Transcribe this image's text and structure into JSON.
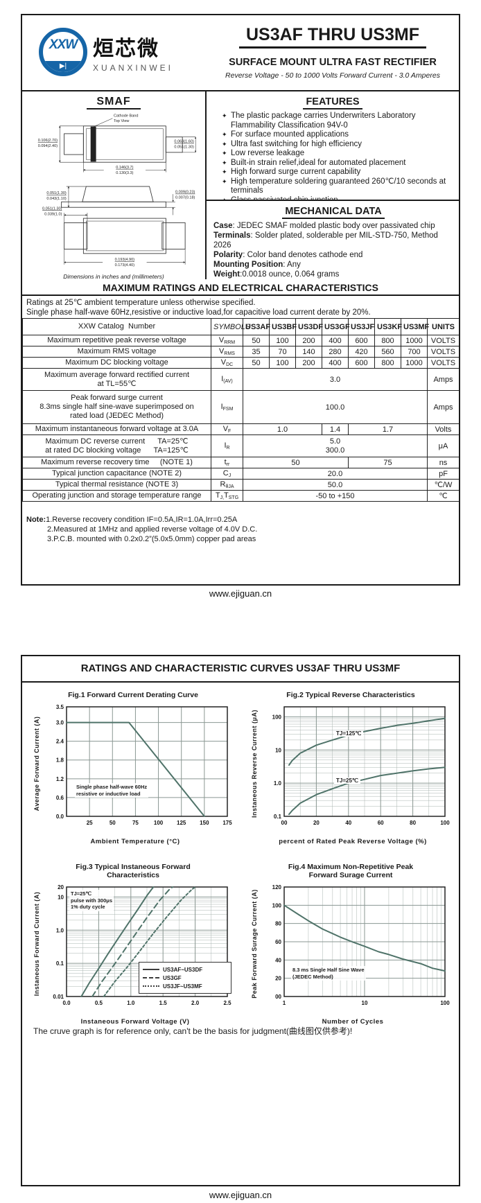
{
  "page1": {
    "logo": {
      "badge": "XXW",
      "diode": "▶|",
      "cn": "烜芯微",
      "en": "XUANXINWEI"
    },
    "title": "US3AF THRU US3MF",
    "subtitle": "SURFACE MOUNT ULTRA FAST RECTIFIER",
    "tagline": "Reverse Voltage - 50 to 1000 Volts  Forward Current -  3.0 Amperes",
    "package": {
      "name": "SMAF",
      "cathode_label": "Cathode Band",
      "view_label": "Top View",
      "dims": {
        "d1t": "0.106(2.70)",
        "d1b": "0.094(2.40)",
        "d2t": "0.063(1.60)",
        "d2b": "0.051(1.30)",
        "d3t": "0.146(3.7)",
        "d3b": "0.130(3.3)",
        "d4t": "0.051(1.30)",
        "d4b": "0.043(1.10)",
        "d5t": "0.009(0.23)",
        "d5b": "0.007(0.18)",
        "d6t": "0.051(1.30)",
        "d6b": "0.039(1.0)",
        "d7t": "0.193(4.90)",
        "d7b": "0.173(4.40)"
      },
      "caption": "Dimensions in inches and (millimeters)"
    },
    "features": {
      "heading": "FEATURES",
      "bullet": "✦",
      "items": [
        "The plastic package carries Underwriters Laboratory Flammability Classification 94V-0",
        "For surface mounted applications",
        "Ultra fast switching for high efficiency",
        "Low reverse leakage",
        "Built-in strain relief,ideal for automated placement",
        "High forward surge current capability",
        "High temperature soldering guaranteed 260℃/10 seconds at terminals",
        "Glass passivated chip junction"
      ]
    },
    "mech": {
      "heading": "MECHANICAL DATA",
      "rows": [
        {
          "label": "Case",
          "text": ": JEDEC SMAF molded plastic body over passivated chip"
        },
        {
          "label": "Terminals",
          "text": ": Solder plated, solderable per MIL-STD-750, Method 2026"
        },
        {
          "label": "Polarity",
          "text": ": Color band denotes cathode end"
        },
        {
          "label": "Mounting Position",
          "text": ": Any"
        },
        {
          "label": "Weight",
          "text": ":0.0018 ounce, 0.064 grams"
        }
      ]
    },
    "ratings": {
      "heading": "MAXIMUM RATINGS AND ELECTRICAL CHARACTERISTICS",
      "note1": "Ratings at 25℃ ambient temperature unless otherwise specified.",
      "note2": "Single phase half-wave 60Hz,resistive or inductive load,for capacitive load current derate by 20%."
    },
    "table": {
      "header": {
        "catalog": "XXW Catalog  Number",
        "symbols": "SYMBOLS",
        "parts": [
          "US3AF",
          "US3BF",
          "US3DF",
          "US3GF",
          "US3JF",
          "US3KF",
          "US3MF"
        ],
        "units": "UNITS"
      },
      "r1": {
        "param": "Maximum repetitive peak reverse voltage",
        "sym": "V",
        "sub": "RRM",
        "v0": "50",
        "v1": "100",
        "v2": "200",
        "v3": "400",
        "v4": "600",
        "v5": "800",
        "v6": "1000",
        "unit": "VOLTS"
      },
      "r2": {
        "param": "Maximum RMS voltage",
        "sym": "V",
        "sub": "RMS",
        "v0": "35",
        "v1": "70",
        "v2": "140",
        "v3": "280",
        "v4": "420",
        "v5": "560",
        "v6": "700",
        "unit": "VOLTS"
      },
      "r3": {
        "param": "Maximum DC blocking voltage",
        "sym": "V",
        "sub": "DC",
        "v0": "50",
        "v1": "100",
        "v2": "200",
        "v3": "400",
        "v4": "600",
        "v5": "800",
        "v6": "1000",
        "unit": "VOLTS"
      },
      "r4": {
        "param": "Maximum average forward rectified current\nat TL=55℃",
        "sym": "I",
        "sub": "(AV)",
        "v": "3.0",
        "unit": "Amps"
      },
      "r5": {
        "param": "Peak forward surge current\n8.3ms single half sine-wave superimposed on\nrated load (JEDEC Method)",
        "sym": "I",
        "sub": "FSM",
        "v": "100.0",
        "unit": "Amps"
      },
      "r6": {
        "param": "Maximum instantaneous forward voltage at 3.0A",
        "sym": "V",
        "sub": "F",
        "va": "1.0",
        "vb": "1.4",
        "vc": "1.7",
        "unit": "Volts"
      },
      "r7": {
        "param": "Maximum DC reverse current      TA=25℃\nat rated DC blocking voltage      TA=125℃",
        "sym": "I",
        "sub": "R",
        "v": "5.0\n300.0",
        "unit": "μA"
      },
      "r8": {
        "param": "Maximum reverse recovery time     (NOTE 1)",
        "sym": "t",
        "sub": "rr",
        "va": "50",
        "vb": "75",
        "unit": "ns"
      },
      "r9": {
        "param": "Typical junction capacitance (NOTE 2)",
        "sym": "C",
        "sub": "J",
        "v": "20.0",
        "unit": "pF"
      },
      "r10": {
        "param": "Typical thermal resistance (NOTE 3)",
        "sym": "R",
        "sub": "θJA",
        "v": "50.0",
        "unit": "℃/W"
      },
      "r11": {
        "param": "Operating junction and storage temperature range",
        "sym": "T",
        "sub": "J,",
        "sym2": "T",
        "sub2": "STG",
        "v": "-50 to +150",
        "unit": "℃"
      }
    },
    "notes": {
      "prefix": "Note:",
      "l1": "1.Reverse recovery condition IF=0.5A,IR=1.0A,Irr=0.25A",
      "l2": "2.Measured at 1MHz and applied reverse voltage of 4.0V D.C.",
      "l3": "3.P.C.B. mounted with 0.2x0.2”(5.0x5.0mm) copper pad areas"
    },
    "footer": "www.ejiguan.cn"
  },
  "page2": {
    "heading": "RATINGS AND CHARACTERISTIC CURVES US3AF THRU US3MF",
    "disclaimer": "The cruve graph is for reference only, can't be the basis for judgment(曲线图仅供参考)!",
    "footer": "www.ejiguan.cn"
  },
  "chart_data": [
    {
      "type": "line",
      "title": "Fig.1  Forward Current Derating Curve",
      "xlabel": "Ambient Temperature (°C)",
      "ylabel": "Average Forward Current  (A)",
      "x": {
        "min": 0,
        "max": 175,
        "log": false,
        "ticks": [
          25,
          50,
          75,
          100,
          125,
          150,
          175
        ],
        "labels": [
          "25",
          "50",
          "75",
          "100",
          "125",
          "150",
          "175"
        ]
      },
      "y": {
        "min": 0,
        "max": 3.5,
        "log": false,
        "ticks": [
          0,
          0.6,
          1.2,
          1.8,
          2.4,
          3,
          3.5
        ],
        "labels": [
          "0.0",
          "0.6",
          "1.2",
          "1.8",
          "2.4",
          "3.0",
          "3.5"
        ]
      },
      "annotation": "Single phase half-wave 60Hz\nresistive or inductive load",
      "series": [
        {
          "name": "derating",
          "dash": "solid",
          "points": [
            [
              0,
              3
            ],
            [
              68,
              3
            ],
            [
              150,
              0
            ]
          ]
        }
      ]
    },
    {
      "type": "line",
      "title": "Fig.2  Typical Reverse Characteristics",
      "xlabel": "percent of Rated  Peak Reverse Voltage (%)",
      "ylabel": "Instaneous Reverse Current (μA)",
      "x": {
        "min": 0,
        "max": 100,
        "log": false,
        "minor": 10,
        "ticks": [
          0,
          20,
          40,
          60,
          80,
          100
        ],
        "labels": [
          "00",
          "20",
          "40",
          "60",
          "80",
          "100"
        ]
      },
      "y": {
        "min": 0.1,
        "max": 200,
        "log": true,
        "ticks": [
          0.1,
          1,
          10,
          100
        ],
        "labels": [
          "0.1",
          "1.0",
          "10",
          "100"
        ]
      },
      "series": [
        {
          "name": "TJ=125℃",
          "dash": "solid",
          "points": [
            [
              3,
              3.5
            ],
            [
              5,
              4.8
            ],
            [
              10,
              8
            ],
            [
              20,
              14
            ],
            [
              30,
              20
            ],
            [
              40,
              28
            ],
            [
              50,
              36
            ],
            [
              60,
              45
            ],
            [
              70,
              55
            ],
            [
              80,
              64
            ],
            [
              90,
              76
            ],
            [
              100,
              90
            ]
          ]
        },
        {
          "name": "TJ=25℃",
          "dash": "solid",
          "points": [
            [
              3,
              0.115
            ],
            [
              5,
              0.15
            ],
            [
              10,
              0.25
            ],
            [
              20,
              0.45
            ],
            [
              30,
              0.68
            ],
            [
              40,
              1.0
            ],
            [
              50,
              1.3
            ],
            [
              60,
              1.7
            ],
            [
              70,
              2.0
            ],
            [
              80,
              2.35
            ],
            [
              90,
              2.7
            ],
            [
              100,
              3.0
            ]
          ]
        }
      ]
    },
    {
      "type": "line",
      "title": "Fig.3  Typical Instaneous Forward\nCharacteristics",
      "xlabel": "Instaneous Forward Voltage (V)",
      "ylabel": "Instaneous  Forward Current (A)",
      "x": {
        "min": 0,
        "max": 2.5,
        "log": false,
        "minor": 0.25,
        "ticks": [
          0,
          0.5,
          1,
          1.5,
          2,
          2.5
        ],
        "labels": [
          "0.0",
          "0.5",
          "1.0",
          "1.5",
          "2.0",
          "2.5"
        ]
      },
      "y": {
        "min": 0.01,
        "max": 20,
        "log": true,
        "ticks": [
          0.01,
          0.1,
          1,
          10,
          20
        ],
        "labels": [
          "0.01",
          "0.1",
          "1.0",
          "10",
          "20"
        ]
      },
      "annotation": "TJ=25℃\npulse with 300μs\n1% duty cycle",
      "series": [
        {
          "name": "US3AF~US3DF",
          "dash": "solid",
          "points": [
            [
              0.23,
              0.01
            ],
            [
              0.35,
              0.025
            ],
            [
              0.5,
              0.07
            ],
            [
              0.65,
              0.2
            ],
            [
              0.8,
              0.55
            ],
            [
              0.95,
              1.5
            ],
            [
              1.1,
              4
            ],
            [
              1.25,
              11
            ],
            [
              1.35,
              20
            ]
          ]
        },
        {
          "name": "US3GF",
          "dash": "long",
          "points": [
            [
              0.4,
              0.01
            ],
            [
              0.55,
              0.028
            ],
            [
              0.72,
              0.08
            ],
            [
              0.9,
              0.25
            ],
            [
              1.08,
              0.8
            ],
            [
              1.25,
              2.4
            ],
            [
              1.45,
              8
            ],
            [
              1.6,
              17
            ],
            [
              1.65,
              20
            ]
          ]
        },
        {
          "name": "US3JF~US3MF",
          "dash": "short",
          "points": [
            [
              0.58,
              0.01
            ],
            [
              0.75,
              0.028
            ],
            [
              0.95,
              0.08
            ],
            [
              1.15,
              0.25
            ],
            [
              1.35,
              0.8
            ],
            [
              1.55,
              2.4
            ],
            [
              1.78,
              8
            ],
            [
              1.95,
              17
            ],
            [
              2.0,
              20
            ]
          ]
        }
      ]
    },
    {
      "type": "line",
      "title": "Fig.4  Maximum Non-Repetitive Peak\nForward Surage Current",
      "xlabel": "Number of Cycles",
      "ylabel": "Peak Forward Surage Current (A)",
      "x": {
        "min": 1,
        "max": 100,
        "log": true,
        "ticks": [
          1,
          10,
          100
        ],
        "labels": [
          "1",
          "10",
          "100"
        ]
      },
      "y": {
        "min": 0,
        "max": 120,
        "log": false,
        "ticks": [
          0,
          20,
          40,
          60,
          80,
          100,
          120
        ],
        "labels": [
          "00",
          "20",
          "40",
          "60",
          "80",
          "100",
          "120"
        ]
      },
      "annotation": "8.3 ms Single Half Sine Wave\n(JEDEC Method)",
      "series": [
        {
          "name": "surge",
          "dash": "solid",
          "points": [
            [
              1,
              100
            ],
            [
              1.5,
              90
            ],
            [
              2,
              83
            ],
            [
              3,
              74
            ],
            [
              4,
              69
            ],
            [
              5,
              65
            ],
            [
              7,
              60
            ],
            [
              10,
              55
            ],
            [
              15,
              49
            ],
            [
              20,
              46
            ],
            [
              30,
              41
            ],
            [
              50,
              36
            ],
            [
              70,
              31
            ],
            [
              100,
              28
            ]
          ]
        }
      ]
    }
  ]
}
